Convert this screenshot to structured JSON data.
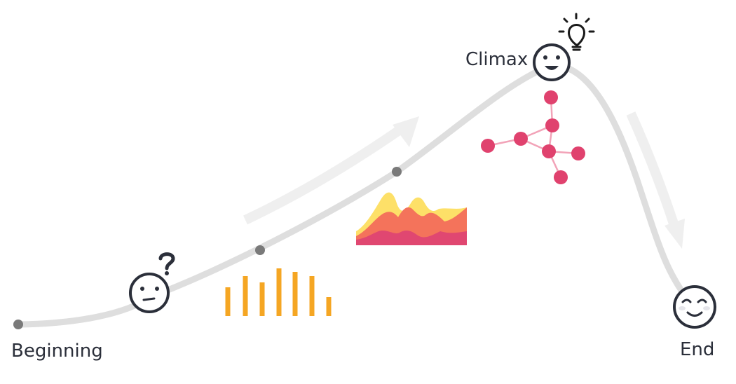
{
  "labels": {
    "beginning": "Beginning",
    "climax": "Climax",
    "end": "End"
  },
  "colors": {
    "curve": "#dedede",
    "arrow": "#efefef",
    "dot": "#7a7a7a",
    "face_stroke": "#2b2f3a",
    "bars": "#f5a623",
    "stream_yellow": "#fde068",
    "stream_orange": "#f4735b",
    "stream_pink": "#e04771",
    "network_node": "#e0426e",
    "network_link": "#f2a3b8",
    "blush": "#e5e5ea"
  },
  "icons": {
    "beginning_face": "confused-face-icon",
    "middle_face": "neutral-face-icon",
    "question": "question-mark-icon",
    "climax_face": "happy-face-icon",
    "idea": "lightbulb-icon",
    "end_face": "content-face-icon",
    "bars": "bar-chart-icon",
    "stream": "streamgraph-icon",
    "network": "network-graph-icon"
  }
}
